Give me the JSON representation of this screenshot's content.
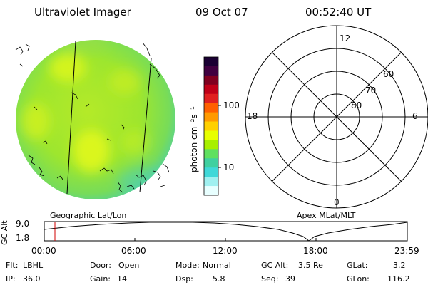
{
  "header": {
    "instrument": "Ultraviolet Imager",
    "date": "09 Oct 07",
    "time": "00:52:40 UT"
  },
  "colorbar": {
    "label": "photon cm⁻²s⁻¹",
    "ticks": [
      "100",
      "10"
    ],
    "scale": "log",
    "colors": [
      "#1a0033",
      "#400040",
      "#800020",
      "#c00018",
      "#e02020",
      "#ff6000",
      "#ff9a00",
      "#ffd000",
      "#e8ff00",
      "#a8f000",
      "#60e060",
      "#40d0a0",
      "#40d8d8",
      "#a0f0f0",
      "#e8ffff"
    ]
  },
  "panels": {
    "left_label": "Geographic Lat/Lon",
    "right_label": "Apex MLat/MLT"
  },
  "polar_grid": {
    "mlt_labels": [
      "12",
      "18",
      "6",
      "0"
    ],
    "lat_labels": [
      "60",
      "70",
      "80"
    ]
  },
  "altitude_plot": {
    "ylabel": "GC Alt",
    "y_ticks": [
      "9.0",
      "1.8"
    ],
    "x_ticks": [
      "00:00",
      "06:00",
      "12:00",
      "18:00",
      "23:59"
    ],
    "marker_time": "00:52:40"
  },
  "info": {
    "row1": [
      {
        "key": "Flt:",
        "value": "LBHL"
      },
      {
        "key": "Door:",
        "value": "Open"
      },
      {
        "key": "Mode:",
        "value": "Normal"
      },
      {
        "key": "GC Alt:",
        "value": "3.5 Re"
      },
      {
        "key": "GLat:",
        "value": "3.2"
      }
    ],
    "row2": [
      {
        "key": "IP:",
        "value": "36.0"
      },
      {
        "key": "Gain:",
        "value": "14"
      },
      {
        "key": "Dsp:",
        "value": "5.8"
      },
      {
        "key": "Seq:",
        "value": "39"
      },
      {
        "key": "GLon:",
        "value": "116.2"
      }
    ]
  }
}
